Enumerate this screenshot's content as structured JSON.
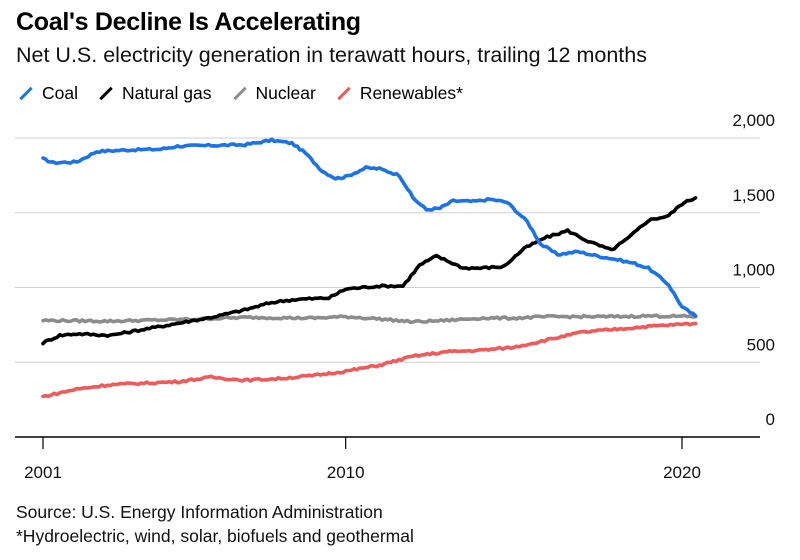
{
  "chart_data": {
    "type": "line",
    "title": "Coal's Decline Is Accelerating",
    "subtitle": "Net U.S. electricity generation in terawatt hours, trailing 12 months",
    "x_ticks": [
      "2001",
      "2010",
      "2020"
    ],
    "y_ticks": [
      "0",
      "500",
      "1,000",
      "1,500",
      "2,000"
    ],
    "ylim": [
      0,
      2000
    ],
    "xlim": [
      2000.5,
      2022.5
    ],
    "grid": "horizontal",
    "legend_position": "top-left",
    "series": [
      {
        "name": "Coal",
        "color": "#1a73e8",
        "points": [
          [
            2001.0,
            1860
          ],
          [
            2001.3,
            1835
          ],
          [
            2002.0,
            1840
          ],
          [
            2002.6,
            1910
          ],
          [
            2003.5,
            1920
          ],
          [
            2004.5,
            1925
          ],
          [
            2005.0,
            1945
          ],
          [
            2006.0,
            1950
          ],
          [
            2007.0,
            1955
          ],
          [
            2007.8,
            1985
          ],
          [
            2008.4,
            1965
          ],
          [
            2008.8,
            1900
          ],
          [
            2009.3,
            1780
          ],
          [
            2009.7,
            1730
          ],
          [
            2010.0,
            1740
          ],
          [
            2010.6,
            1800
          ],
          [
            2011.0,
            1795
          ],
          [
            2011.6,
            1750
          ],
          [
            2012.0,
            1600
          ],
          [
            2012.4,
            1520
          ],
          [
            2012.8,
            1530
          ],
          [
            2013.2,
            1580
          ],
          [
            2013.8,
            1575
          ],
          [
            2014.3,
            1590
          ],
          [
            2014.8,
            1570
          ],
          [
            2015.4,
            1440
          ],
          [
            2015.8,
            1290
          ],
          [
            2016.3,
            1220
          ],
          [
            2016.9,
            1240
          ],
          [
            2017.5,
            1210
          ],
          [
            2018.0,
            1190
          ],
          [
            2018.6,
            1160
          ],
          [
            2019.0,
            1130
          ],
          [
            2019.6,
            1020
          ],
          [
            2020.0,
            870
          ],
          [
            2020.4,
            810
          ]
        ]
      },
      {
        "name": "Natural gas",
        "color": "#000000",
        "points": [
          [
            2001.0,
            630
          ],
          [
            2001.5,
            680
          ],
          [
            2002.0,
            690
          ],
          [
            2003.0,
            680
          ],
          [
            2004.0,
            720
          ],
          [
            2005.0,
            760
          ],
          [
            2006.0,
            800
          ],
          [
            2007.0,
            850
          ],
          [
            2007.8,
            900
          ],
          [
            2008.5,
            920
          ],
          [
            2009.5,
            930
          ],
          [
            2010.0,
            990
          ],
          [
            2011.0,
            1010
          ],
          [
            2011.7,
            1010
          ],
          [
            2012.2,
            1150
          ],
          [
            2012.7,
            1210
          ],
          [
            2013.0,
            1180
          ],
          [
            2013.5,
            1130
          ],
          [
            2014.0,
            1130
          ],
          [
            2014.7,
            1140
          ],
          [
            2015.3,
            1260
          ],
          [
            2015.9,
            1330
          ],
          [
            2016.6,
            1380
          ],
          [
            2017.2,
            1310
          ],
          [
            2017.9,
            1250
          ],
          [
            2018.4,
            1330
          ],
          [
            2019.0,
            1450
          ],
          [
            2019.6,
            1480
          ],
          [
            2020.0,
            1560
          ],
          [
            2020.4,
            1600
          ]
        ]
      },
      {
        "name": "Nuclear",
        "color": "#8c8c8c",
        "points": [
          [
            2001.0,
            780
          ],
          [
            2003.0,
            775
          ],
          [
            2005.0,
            785
          ],
          [
            2007.0,
            800
          ],
          [
            2009.0,
            795
          ],
          [
            2010.0,
            805
          ],
          [
            2011.0,
            790
          ],
          [
            2012.0,
            770
          ],
          [
            2013.0,
            780
          ],
          [
            2014.0,
            795
          ],
          [
            2015.0,
            795
          ],
          [
            2016.0,
            805
          ],
          [
            2017.0,
            805
          ],
          [
            2018.0,
            805
          ],
          [
            2019.0,
            810
          ],
          [
            2020.4,
            805
          ]
        ]
      },
      {
        "name": "Renewables*",
        "color": "#f05a5a",
        "points": [
          [
            2001.0,
            270
          ],
          [
            2002.0,
            320
          ],
          [
            2003.0,
            350
          ],
          [
            2004.0,
            360
          ],
          [
            2005.0,
            370
          ],
          [
            2006.0,
            400
          ],
          [
            2007.0,
            380
          ],
          [
            2008.0,
            390
          ],
          [
            2009.0,
            410
          ],
          [
            2010.0,
            440
          ],
          [
            2011.0,
            480
          ],
          [
            2012.0,
            540
          ],
          [
            2013.0,
            570
          ],
          [
            2014.0,
            580
          ],
          [
            2015.0,
            600
          ],
          [
            2016.0,
            650
          ],
          [
            2017.0,
            700
          ],
          [
            2018.0,
            720
          ],
          [
            2019.0,
            740
          ],
          [
            2020.4,
            760
          ]
        ]
      }
    ],
    "source": "Source: U.S. Energy Information Administration",
    "note": "*Hydroelectric, wind, solar, biofuels and geothermal"
  }
}
